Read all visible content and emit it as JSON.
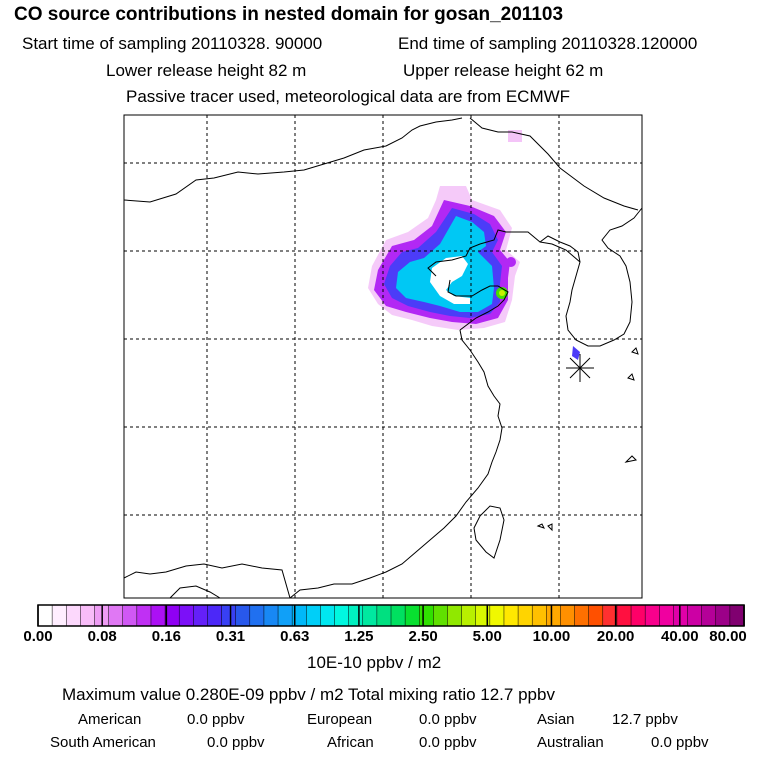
{
  "header": {
    "title": "CO  source contributions in nested domain for gosan_201103",
    "start_label": "Start time of sampling 20110328. 90000",
    "end_label": "End time of sampling 20110328.120000",
    "lower_release": "Lower release height   82 m",
    "upper_release": "Upper release height   62 m",
    "note": "Passive tracer used, meteorological data are from ECMWF"
  },
  "chart_data": {
    "type": "heatmap",
    "title": "CO  source contributions in nested domain for gosan_201103",
    "units": "10E-10 ppbv / m2",
    "grid": true,
    "receptor": "gosan",
    "colorbar": {
      "levels": [
        "0.00",
        "0.08",
        "0.16",
        "0.31",
        "0.63",
        "1.25",
        "2.50",
        "5.00",
        "10.00",
        "20.00",
        "40.00",
        "80.00"
      ],
      "colors": [
        "#ffffff",
        "#ffeeff",
        "#fcd8fc",
        "#f8bcf8",
        "#ee9cf4",
        "#e078f4",
        "#d058f4",
        "#c030f4",
        "#ac10f4",
        "#9000f4",
        "#7c10f8",
        "#6420f8",
        "#4c28f8",
        "#3840f4",
        "#2858ec",
        "#2070f0",
        "#1888f4",
        "#10a0f8",
        "#00b8f8",
        "#00cff8",
        "#00e8f0",
        "#00f8e0",
        "#00f0c0",
        "#00e8a0",
        "#00e080",
        "#00e060",
        "#08e030",
        "#30e000",
        "#60e000",
        "#90e800",
        "#b8f000",
        "#d8f800",
        "#f0f800",
        "#ffe800",
        "#ffd400",
        "#ffc000",
        "#ffa800",
        "#ff9000",
        "#ff7000",
        "#ff5000",
        "#ff3030",
        "#ff1040",
        "#ff0068",
        "#f8008c",
        "#f000a0",
        "#e000a8",
        "#cc00a4",
        "#b40098",
        "#9c0088",
        "#800070"
      ]
    }
  },
  "summary": {
    "max_line": "Maximum value  0.280E-09 ppbv / m2      Total mixing ratio       12.7 ppbv",
    "sources": [
      {
        "name": "American",
        "value": "0.0 ppbv"
      },
      {
        "name": "European",
        "value": "0.0 ppbv"
      },
      {
        "name": "Asian",
        "value": "12.7 ppbv"
      },
      {
        "name": "South American",
        "value": "0.0 ppbv"
      },
      {
        "name": "African",
        "value": "0.0 ppbv"
      },
      {
        "name": "Australian",
        "value": "0.0 ppbv"
      }
    ]
  }
}
